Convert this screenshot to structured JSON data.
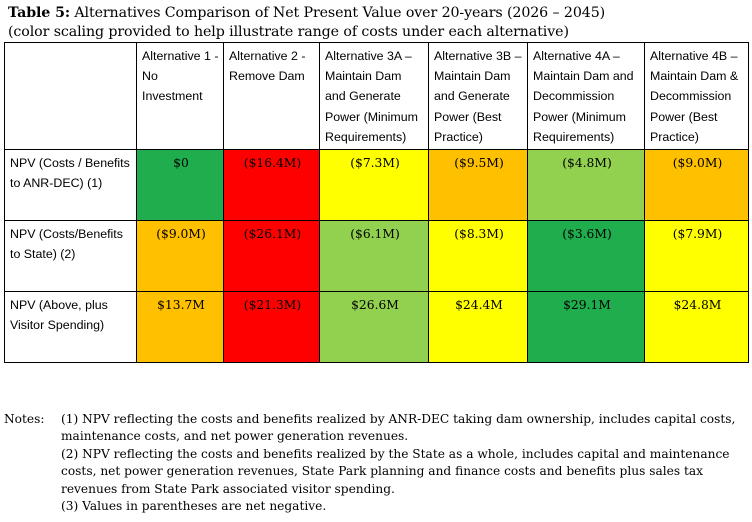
{
  "caption": {
    "line1_bold": "Table 5:",
    "line1_rest": " Alternatives Comparison of Net Present Value over 20-years (2026 – 2045)",
    "line2": "(color scaling provided to help illustrate range of costs under each alternative)"
  },
  "table": {
    "headers": [
      "",
      "Alternative 1 - No Investment",
      "Alternative 2 - Remove Dam",
      "Alternative 3A – Maintain Dam and Generate Power (Minimum Requirements)",
      "Alternative 3B – Maintain Dam and Generate Power (Best Practice)",
      "Alternative 4A – Maintain Dam and Decommission Power (Minimum Requirements)",
      "Alternative 4B – Maintain Dam & Decommission Power (Best Practice)"
    ],
    "rows": [
      {
        "label": "NPV (Costs / Benefits to ANR-DEC) (1)",
        "values": [
          "$0",
          "($16.4M)",
          "($7.3M)",
          "($9.5M)",
          "($4.8M)",
          "($9.0M)"
        ],
        "colors": [
          "#1fad4d",
          "#ff0000",
          "#ffff00",
          "#ffc000",
          "#92d050",
          "#ffc000"
        ]
      },
      {
        "label": "NPV (Costs/Benefits to State) (2)",
        "values": [
          "($9.0M)",
          "($26.1M)",
          "($6.1M)",
          "($8.3M)",
          "($3.6M)",
          "($7.9M)"
        ],
        "colors": [
          "#ffc000",
          "#ff0000",
          "#92d050",
          "#ffff00",
          "#1fad4d",
          "#ffff00"
        ]
      },
      {
        "label": "NPV (Above, plus Visitor Spending)",
        "values": [
          "$13.7M",
          "($21.3M)",
          "$26.6M",
          "$24.4M",
          "$29.1M",
          "$24.8M"
        ],
        "colors": [
          "#ffc000",
          "#ff0000",
          "#92d050",
          "#ffff00",
          "#1fad4d",
          "#ffff00"
        ]
      }
    ]
  },
  "notes": {
    "label": "Notes:",
    "n1": "(1) NPV reflecting the costs and benefits realized by ANR-DEC taking dam ownership, includes capital costs, maintenance costs, and net power generation revenues.",
    "n2": "(2) NPV reflecting the costs and benefits realized by the State as a whole, includes capital and maintenance costs, net power generation revenues, State Park planning and finance costs and benefits plus sales tax revenues from State Park associated visitor spending.",
    "n3": "(3) Values in parentheses are net negative."
  }
}
